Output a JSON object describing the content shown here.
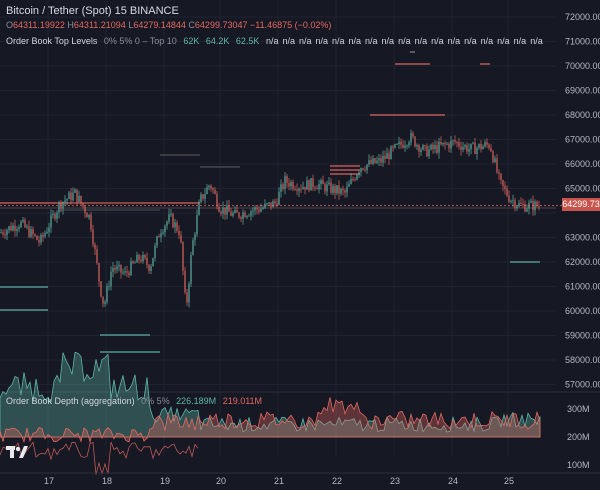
{
  "header": {
    "title": "Bitcoin / Tether (Spot)  15  BINANCE",
    "ohlc": [
      {
        "k": "O",
        "v": "64311.19922"
      },
      {
        "k": "H",
        "v": "64311.21094"
      },
      {
        "k": "L",
        "v": "64279.14844"
      },
      {
        "k": "C",
        "v": "64299.73047"
      },
      {
        "k": "",
        "v": "−11.46875 (−0.02%)"
      }
    ]
  },
  "top_indicator": {
    "name": "Order Book Top Levels",
    "params": "0% 5% 0 – Top 10",
    "values": [
      "62K",
      "64.2K",
      "62.5K"
    ],
    "na_values": [
      "n/a",
      "n/a",
      "n/a",
      "n/a",
      "n/a",
      "n/a",
      "n/a",
      "n/a",
      "n/a",
      "n/a",
      "n/a",
      "n/a",
      "n/a",
      "n/a",
      "n/a",
      "n/a",
      "n/a"
    ]
  },
  "bottom_indicator": {
    "name": "Order Book Depth (aggregation)",
    "params": "0% 5%",
    "bid_value": "226.189M",
    "ask_value": "219.011M"
  },
  "price_tag": "64299.73",
  "price_axis": [
    "72000.00",
    "71000.00",
    "70000.00",
    "69000.00",
    "68000.00",
    "67000.00",
    "66000.00",
    "65000.00",
    "63000.00",
    "62000.00",
    "61000.00",
    "60000.00",
    "59000.00",
    "58000.00",
    "57000.00"
  ],
  "depth_axis": [
    "300M",
    "200M",
    "100M"
  ],
  "time_axis": [
    "17",
    "18",
    "19",
    "20",
    "21",
    "22",
    "23",
    "24",
    "25"
  ],
  "colors": {
    "up": "#5fb6a9",
    "down": "#e46a62",
    "bg": "#161823"
  }
}
